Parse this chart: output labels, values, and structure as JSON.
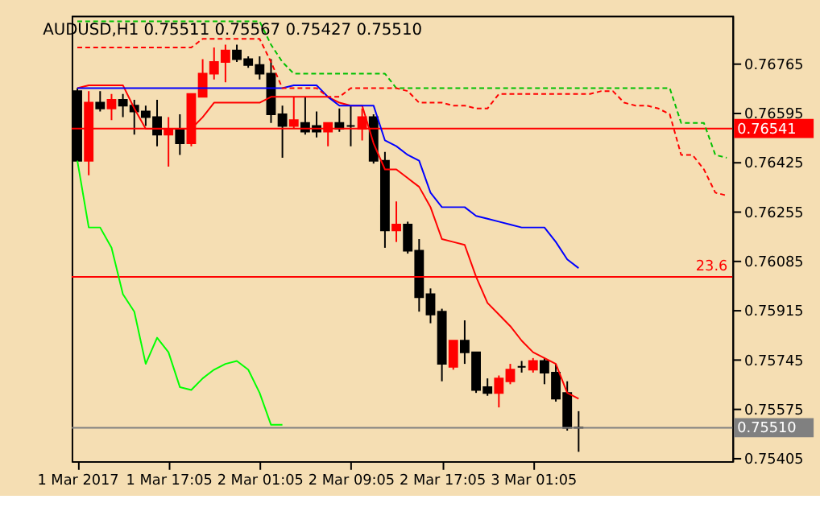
{
  "chart_data": {
    "type": "candlestick",
    "title": "AUDUSD,H1  0.75511 0.75567 0.75427 0.75510",
    "categories": [
      "1 Mar 2017",
      null,
      null,
      null,
      null,
      null,
      null,
      null,
      "1 Mar 17:05",
      null,
      null,
      null,
      null,
      null,
      null,
      null,
      "2 Mar 01:05",
      null,
      null,
      null,
      null,
      null,
      null,
      null,
      "2 Mar 09:05",
      null,
      null,
      null,
      null,
      null,
      null,
      null,
      "2 Mar 17:05",
      null,
      null,
      null,
      null,
      null,
      null,
      null,
      "3 Mar 01:05",
      null,
      null,
      null,
      null,
      null,
      null,
      null,
      null,
      null,
      null,
      null,
      null,
      null,
      null,
      null,
      null,
      null
    ],
    "ohlc": [
      [
        0.7667,
        0.7668,
        0.7643,
        0.7643
      ],
      [
        0.7643,
        0.7667,
        0.7638,
        0.7663
      ],
      [
        0.7663,
        0.7667,
        0.766,
        0.7661
      ],
      [
        0.7661,
        0.7666,
        0.7657,
        0.7664
      ],
      [
        0.7664,
        0.7666,
        0.7658,
        0.7662
      ],
      [
        0.7662,
        0.7664,
        0.7652,
        0.766
      ],
      [
        0.766,
        0.7662,
        0.7655,
        0.7658
      ],
      [
        0.7658,
        0.7664,
        0.7648,
        0.7652
      ],
      [
        0.7652,
        0.7658,
        0.7641,
        0.7654
      ],
      [
        0.7654,
        0.7659,
        0.7645,
        0.7649
      ],
      [
        0.7649,
        0.7666,
        0.7648,
        0.7666
      ],
      [
        0.7665,
        0.7678,
        0.7665,
        0.7673
      ],
      [
        0.7673,
        0.7682,
        0.7671,
        0.7677
      ],
      [
        0.7677,
        0.7683,
        0.767,
        0.7681
      ],
      [
        0.7681,
        0.7683,
        0.7677,
        0.7678
      ],
      [
        0.7678,
        0.7679,
        0.7675,
        0.7676
      ],
      [
        0.7676,
        0.7679,
        0.7671,
        0.7673
      ],
      [
        0.7673,
        0.7678,
        0.7656,
        0.7659
      ],
      [
        0.7659,
        0.7662,
        0.7644,
        0.7655
      ],
      [
        0.7655,
        0.7665,
        0.7654,
        0.7657
      ],
      [
        0.7656,
        0.7665,
        0.7652,
        0.7653
      ],
      [
        0.7655,
        0.766,
        0.7651,
        0.7653
      ],
      [
        0.7653,
        0.7656,
        0.7648,
        0.7656
      ],
      [
        0.7656,
        0.7661,
        0.7653,
        0.7654
      ],
      [
        0.7655,
        0.7662,
        0.7648,
        0.7655
      ],
      [
        0.7654,
        0.7661,
        0.765,
        0.7658
      ],
      [
        0.7658,
        0.7659,
        0.7642,
        0.7643
      ],
      [
        0.7643,
        0.7646,
        0.7613,
        0.7619
      ],
      [
        0.7619,
        0.7629,
        0.7615,
        0.7621
      ],
      [
        0.7621,
        0.7622,
        0.7611,
        0.7612
      ],
      [
        0.7612,
        0.7616,
        0.7591,
        0.7596
      ],
      [
        0.7597,
        0.7599,
        0.7587,
        0.759
      ],
      [
        0.7591,
        0.7592,
        0.7567,
        0.7573
      ],
      [
        0.7572,
        0.7581,
        0.7571,
        0.7581
      ],
      [
        0.7581,
        0.7588,
        0.7573,
        0.7577
      ],
      [
        0.7577,
        0.7577,
        0.7563,
        0.7564
      ],
      [
        0.7565,
        0.7568,
        0.7562,
        0.7563
      ],
      [
        0.7563,
        0.7569,
        0.7558,
        0.7568
      ],
      [
        0.7567,
        0.7573,
        0.7566,
        0.7571
      ],
      [
        0.7572,
        0.7574,
        0.757,
        0.7572
      ],
      [
        0.7571,
        0.7575,
        0.757,
        0.7574
      ],
      [
        0.7574,
        0.7575,
        0.7566,
        0.757
      ],
      [
        0.757,
        0.7573,
        0.756,
        0.7561
      ],
      [
        0.7563,
        0.7567,
        0.755,
        0.7551
      ],
      [
        0.75511,
        0.75567,
        0.75427,
        0.7551
      ],
      null,
      null,
      null,
      null,
      null,
      null,
      null,
      null,
      null,
      null,
      null,
      null,
      null
    ],
    "colors": [
      "#000000",
      "#ff0000",
      "#000000",
      "#ff0000",
      "#000000",
      "#000000",
      "#000000",
      "#000000",
      "#ff0000",
      "#000000",
      "#ff0000",
      "#ff0000",
      "#ff0000",
      "#ff0000",
      "#000000",
      "#000000",
      "#000000",
      "#000000",
      "#000000",
      "#ff0000",
      "#000000",
      "#000000",
      "#ff0000",
      "#000000",
      "#000000",
      "#ff0000",
      "#000000",
      "#000000",
      "#ff0000",
      "#000000",
      "#000000",
      "#000000",
      "#000000",
      "#ff0000",
      "#000000",
      "#000000",
      "#000000",
      "#ff0000",
      "#ff0000",
      "#000000",
      "#ff0000",
      "#000000",
      "#000000",
      "#000000",
      "#000000",
      null,
      null,
      null,
      null,
      null,
      null,
      null,
      null,
      null,
      null,
      null,
      null,
      null
    ],
    "series": [
      {
        "type": "line",
        "color": "#ff0000",
        "line_style": "solid",
        "values": [
          0.7668,
          0.7669,
          0.7669,
          0.7669,
          0.7669,
          0.7661,
          0.7654,
          0.7654,
          0.7654,
          0.7654,
          0.7654,
          0.7658,
          0.7663,
          0.7663,
          0.7663,
          0.7663,
          0.7663,
          0.7665,
          0.7665,
          0.7665,
          0.7665,
          0.7665,
          0.7665,
          0.7663,
          0.7662,
          0.7662,
          0.7649,
          0.764,
          0.764,
          0.7637,
          0.7634,
          0.7627,
          0.7616,
          0.7615,
          0.7614,
          0.7603,
          0.7594,
          0.759,
          0.7586,
          0.7581,
          0.7577,
          0.7575,
          0.7573,
          0.7563,
          0.7561,
          null,
          null,
          null,
          null,
          null,
          null,
          null,
          null,
          null,
          null,
          null,
          null,
          null
        ]
      },
      {
        "type": "line",
        "color": "#0000ff",
        "line_style": "solid",
        "values": [
          0.7668,
          0.7668,
          0.7668,
          0.7668,
          0.7668,
          0.7668,
          0.7668,
          0.7668,
          0.7668,
          0.7668,
          0.7668,
          0.7668,
          0.7668,
          0.7668,
          0.7668,
          0.7668,
          0.7668,
          0.7668,
          0.7668,
          0.7669,
          0.7669,
          0.7669,
          0.7665,
          0.7662,
          0.7662,
          0.7662,
          0.7662,
          0.765,
          0.7648,
          0.7645,
          0.7643,
          0.7632,
          0.7627,
          0.7627,
          0.7627,
          0.7624,
          0.7623,
          0.7622,
          0.7621,
          0.762,
          0.762,
          0.762,
          0.7615,
          0.7609,
          0.7606,
          null,
          null,
          null,
          null,
          null,
          null,
          null,
          null,
          null,
          null,
          null,
          null,
          null
        ]
      },
      {
        "type": "line",
        "color": "#00ff00",
        "line_style": "solid",
        "values": [
          0.7643,
          0.762,
          0.762,
          0.7613,
          0.7597,
          0.7591,
          0.7573,
          0.7582,
          0.7577,
          0.7565,
          0.7564,
          0.7568,
          0.7571,
          0.7573,
          0.7574,
          0.7571,
          0.7563,
          0.7552,
          0.7552,
          null,
          null,
          null,
          null,
          null,
          null,
          null,
          null,
          null,
          null,
          null,
          null,
          null,
          null,
          null,
          null,
          null,
          null,
          null,
          null,
          null,
          null,
          null,
          null,
          null,
          null,
          null,
          null,
          null,
          null,
          null,
          null,
          null,
          null,
          null,
          null,
          null,
          null,
          null
        ]
      },
      {
        "type": "line",
        "color": "#00c000",
        "line_style": "dashed",
        "values": [
          0.7691,
          0.7691,
          0.7691,
          0.7691,
          0.7691,
          0.7691,
          0.7691,
          0.7691,
          0.7691,
          0.7691,
          0.7691,
          0.7691,
          0.7691,
          0.7691,
          0.7691,
          0.7691,
          0.7691,
          0.7683,
          0.7677,
          0.7673,
          0.7673,
          0.7673,
          0.7673,
          0.7673,
          0.7673,
          0.7673,
          0.7673,
          0.7673,
          0.7668,
          0.7668,
          0.7668,
          0.7668,
          0.7668,
          0.7668,
          0.7668,
          0.7668,
          0.7668,
          0.7668,
          0.7668,
          0.7668,
          0.7668,
          0.7668,
          0.7668,
          0.7668,
          0.7668,
          0.7668,
          0.7668,
          0.7668,
          0.7668,
          0.7668,
          0.7668,
          0.7668,
          0.7668,
          0.7656,
          0.7656,
          0.7656,
          0.7645,
          0.7644
        ]
      },
      {
        "type": "line",
        "color": "#ff0000",
        "line_style": "dashed",
        "values": [
          0.7682,
          0.7682,
          0.7682,
          0.7682,
          0.7682,
          0.7682,
          0.7682,
          0.7682,
          0.7682,
          0.7682,
          0.7682,
          0.7685,
          0.7685,
          0.7685,
          0.7685,
          0.7685,
          0.7685,
          0.7677,
          0.7668,
          0.7668,
          0.7668,
          0.7668,
          0.7665,
          0.7665,
          0.7668,
          0.7668,
          0.7668,
          0.7668,
          0.7668,
          0.7667,
          0.7663,
          0.7663,
          0.7663,
          0.7662,
          0.7662,
          0.7661,
          0.7661,
          0.7666,
          0.7666,
          0.7666,
          0.7666,
          0.7666,
          0.7666,
          0.7666,
          0.7666,
          0.7666,
          0.7667,
          0.7667,
          0.7663,
          0.7662,
          0.7662,
          0.7661,
          0.7659,
          0.7645,
          0.7645,
          0.764,
          0.7632,
          0.7631
        ]
      }
    ],
    "ref_lines": [
      {
        "axis": "y",
        "value": 0.76541,
        "label": "0.76541",
        "color": "#ff0000"
      },
      {
        "axis": "y",
        "value": 0.7603,
        "color": "#ff0000"
      },
      {
        "axis": "y",
        "value": 0.7551,
        "label": "0.75510",
        "color": "#808080"
      }
    ],
    "annotations": [
      {
        "text": "23.6",
        "y": 0.7603
      }
    ],
    "ylim": [
      0.75395,
      0.7693
    ],
    "yticks": [
      0.76765,
      0.76595,
      0.76425,
      0.76255,
      0.76085,
      0.75915,
      0.75745,
      0.75575,
      0.75405
    ],
    "grid": false
  }
}
